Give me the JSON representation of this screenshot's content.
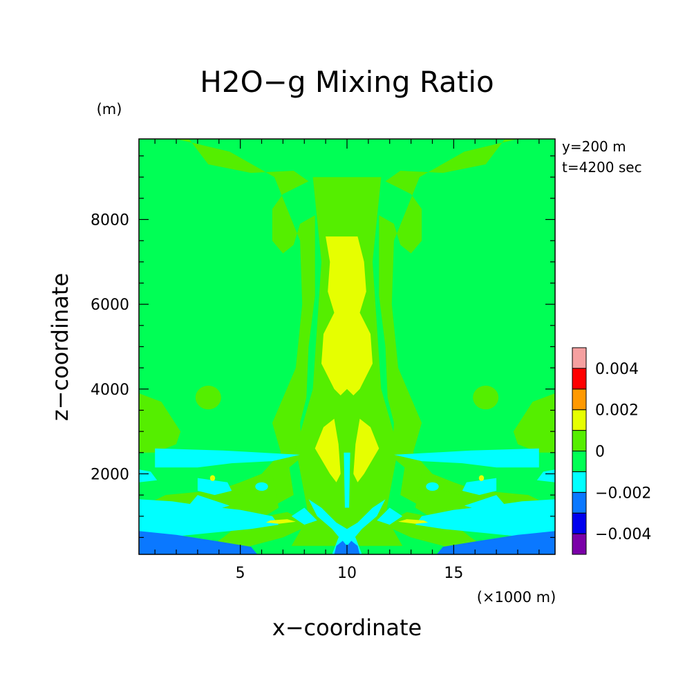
{
  "chart_data": {
    "type": "heatmap",
    "title": "H2O-g Mixing Ratio",
    "subtitle_lines": [
      "y=200 m",
      "t=4200 sec"
    ],
    "xlabel": "x-coordinate",
    "ylabel": "z-coordinate",
    "x_unit": "(×1000 m)",
    "y_unit": "(m)",
    "xlim": [
      0.25,
      19.75
    ],
    "ylim": [
      100,
      9900
    ],
    "x_ticks": [
      5,
      10,
      15
    ],
    "y_ticks": [
      2000,
      4000,
      6000,
      8000
    ],
    "colorbar": {
      "levels": [
        -0.005,
        -0.004,
        -0.003,
        -0.002,
        -0.001,
        0,
        0.001,
        0.002,
        0.003,
        0.004,
        0.005
      ],
      "colors": [
        "#7b00a8",
        "#0000ee",
        "#0a78ff",
        "#00ffff",
        "#00ff55",
        "#55ee00",
        "#e6ff00",
        "#ff9900",
        "#ff0000",
        "#f5a0a0"
      ],
      "tick_labels": [
        "-0.004",
        "-0.002",
        "0",
        "0.002",
        "0.004"
      ],
      "tick_values": [
        -0.004,
        -0.002,
        0,
        0.002,
        0.004
      ]
    }
  }
}
